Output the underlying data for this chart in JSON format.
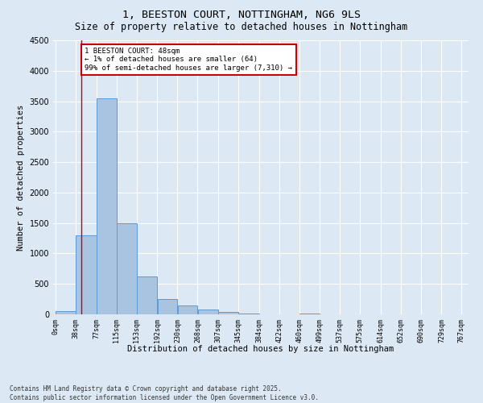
{
  "title_line1": "1, BEESTON COURT, NOTTINGHAM, NG6 9LS",
  "title_line2": "Size of property relative to detached houses in Nottingham",
  "xlabel": "Distribution of detached houses by size in Nottingham",
  "ylabel": "Number of detached properties",
  "bar_color": "#a8c4e0",
  "bar_edge_color": "#5b9bd5",
  "bar_left_edges": [
    0,
    38,
    77,
    115,
    153,
    192,
    230,
    268,
    307,
    345,
    384,
    422,
    460,
    499,
    537,
    575,
    614,
    652,
    690,
    729
  ],
  "bar_widths": [
    38,
    39,
    38,
    38,
    39,
    38,
    38,
    39,
    38,
    39,
    38,
    38,
    39,
    38,
    38,
    39,
    38,
    38,
    39,
    38
  ],
  "bar_heights": [
    50,
    1300,
    3550,
    1500,
    620,
    250,
    140,
    75,
    40,
    15,
    5,
    3,
    15,
    3,
    0,
    0,
    0,
    0,
    0,
    0
  ],
  "tick_labels": [
    "0sqm",
    "38sqm",
    "77sqm",
    "115sqm",
    "153sqm",
    "192sqm",
    "230sqm",
    "268sqm",
    "307sqm",
    "345sqm",
    "384sqm",
    "422sqm",
    "460sqm",
    "499sqm",
    "537sqm",
    "575sqm",
    "614sqm",
    "652sqm",
    "690sqm",
    "729sqm",
    "767sqm"
  ],
  "tick_positions": [
    0,
    38,
    77,
    115,
    153,
    192,
    230,
    268,
    307,
    345,
    384,
    422,
    460,
    499,
    537,
    575,
    614,
    652,
    690,
    729,
    767
  ],
  "ylim": [
    0,
    4500
  ],
  "yticks": [
    0,
    500,
    1000,
    1500,
    2000,
    2500,
    3000,
    3500,
    4000,
    4500
  ],
  "property_line_x": 48,
  "annotation_box_text": "1 BEESTON COURT: 48sqm\n← 1% of detached houses are smaller (64)\n99% of semi-detached houses are larger (7,310) →",
  "annotation_box_color": "#ffffff",
  "annotation_box_edge_color": "#cc0000",
  "background_color": "#dce9f5",
  "plot_bg_color": "#dce9f5",
  "footer_text": "Contains HM Land Registry data © Crown copyright and database right 2025.\nContains public sector information licensed under the Open Government Licence v3.0.",
  "title_fontsize": 9.5,
  "subtitle_fontsize": 8.5,
  "axis_label_fontsize": 7.5,
  "tick_fontsize": 6,
  "annotation_fontsize": 6.5,
  "footer_fontsize": 5.5
}
